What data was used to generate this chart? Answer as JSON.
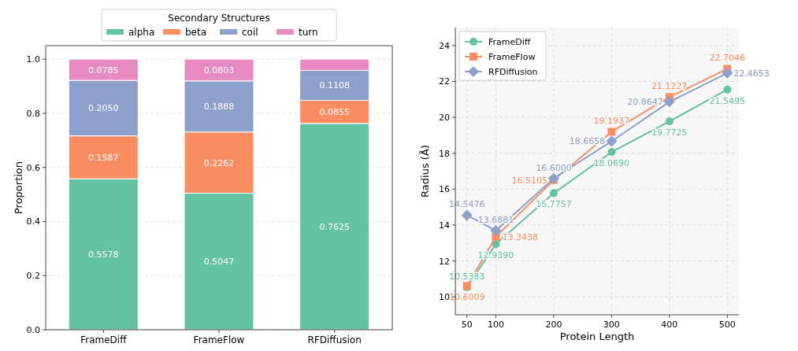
{
  "chart_data": [
    {
      "type": "bar",
      "stacked": true,
      "categories": [
        "FrameDiff",
        "FrameFlow",
        "RFDiffusion"
      ],
      "ylabel": "Proportion",
      "legend_title": "Secondary Structures",
      "legend": "top",
      "grid": "y",
      "ylim": [
        0,
        1.05
      ],
      "yticks": [
        {
          "value": 0,
          "label": "0.0"
        },
        0.2,
        0.4,
        0.6,
        0.8,
        {
          "value": 1,
          "label": "1.0"
        }
      ],
      "series": [
        {
          "name": "alpha",
          "color": "#66c2a5",
          "values": [
            0.5578,
            0.5047,
            0.7625
          ],
          "value_labels": [
            "0.5578",
            "0.5047",
            "0.7625"
          ]
        },
        {
          "name": "beta",
          "color": "#fc8d62",
          "values": [
            0.1587,
            0.2262,
            0.0855
          ],
          "value_labels": [
            "0.1587",
            "0.2262",
            "0.0855"
          ]
        },
        {
          "name": "coil",
          "color": "#8da0cb",
          "values": [
            0.205,
            0.1888,
            0.1108
          ],
          "value_labels": [
            "0.2050",
            "0.1888",
            "0.1108"
          ]
        },
        {
          "name": "turn",
          "color": "#e78ac3",
          "values": [
            0.0785,
            0.0803,
            0.0412
          ],
          "value_labels": [
            "0.0785",
            "0.0803",
            null
          ]
        }
      ]
    },
    {
      "type": "line",
      "x": [
        50,
        100,
        200,
        300,
        400,
        500
      ],
      "xlabel": "Protein Length",
      "ylabel": "Radius (Å)",
      "xlim": [
        30,
        520
      ],
      "ylim": [
        9,
        25
      ],
      "xticks": [
        50,
        100,
        200,
        300,
        400,
        500
      ],
      "yticks": [
        10,
        12,
        14,
        16,
        18,
        20,
        22,
        24
      ],
      "grid": true,
      "legend": "top left",
      "data_labels": true,
      "series": [
        {
          "name": "FrameDiff",
          "color": "#66c2a5",
          "marker": "circle",
          "values": [
            10.5383,
            12.939,
            15.7757,
            18.069,
            19.7725,
            21.5495
          ],
          "value_labels": [
            "10.5383",
            "12.9390",
            "15.7757",
            "18.0690",
            "19.7725",
            "21.5495"
          ]
        },
        {
          "name": "FrameFlow",
          "color": "#fc8d62",
          "marker": "square",
          "values": [
            10.6009,
            13.3438,
            16.5105,
            19.1937,
            21.1227,
            22.7046
          ],
          "value_labels": [
            "10.6009",
            "13.3438",
            "16.5105",
            "19.1937",
            "21.1227",
            "22.7046"
          ]
        },
        {
          "name": "RFDiffusion",
          "color": "#8da0cb",
          "marker": "diamond",
          "values": [
            14.5476,
            13.6881,
            16.6,
            18.6658,
            20.8647,
            22.4653
          ],
          "value_labels": [
            "14.5476",
            "13.6881",
            "16.6000",
            "18.6658",
            "20.8647",
            "22.4653"
          ]
        }
      ]
    }
  ]
}
